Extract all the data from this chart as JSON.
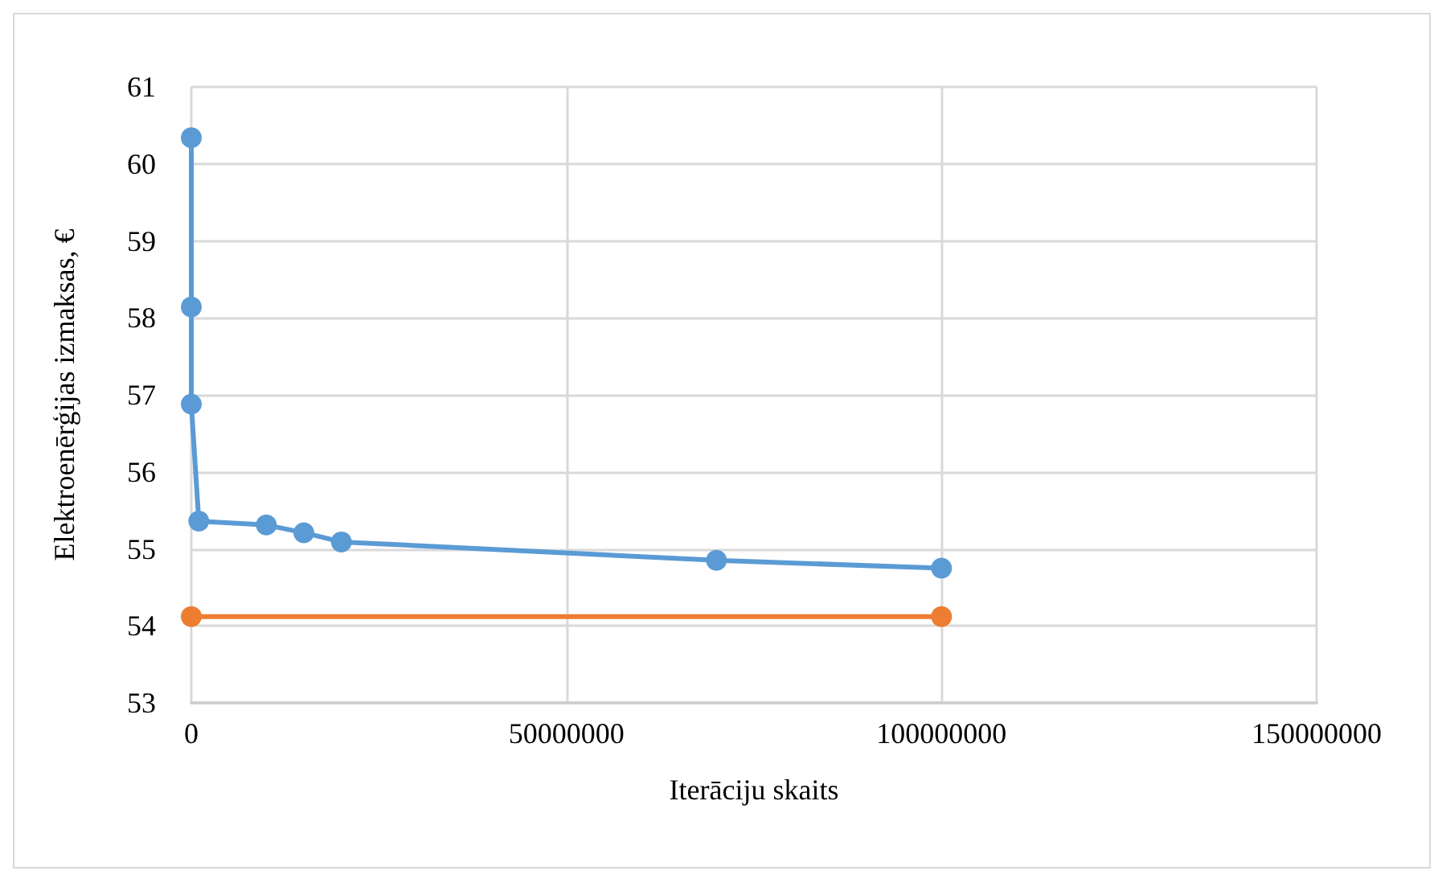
{
  "chart_data": {
    "type": "line",
    "xlabel": "Iterāciju skaits",
    "ylabel": "Elektroenērģijas izmaksas, €",
    "xlim": [
      0,
      150000000
    ],
    "xticks": [
      0,
      50000000,
      100000000,
      150000000
    ],
    "ylim": [
      53,
      61
    ],
    "yticks": [
      53,
      54,
      55,
      56,
      57,
      58,
      59,
      60,
      61
    ],
    "grid": true,
    "marker": "circle",
    "series": [
      {
        "color": "#5b9bd5",
        "x": [
          0,
          0,
          0,
          1000000,
          10000000,
          15000000,
          20000000,
          70000000,
          100000000
        ],
        "values": [
          60.34,
          58.14,
          56.88,
          55.36,
          55.31,
          55.21,
          55.09,
          54.85,
          54.75
        ]
      },
      {
        "color": "#ed7d31",
        "x": [
          0,
          100000000
        ],
        "values": [
          54.12,
          54.12
        ]
      }
    ]
  }
}
